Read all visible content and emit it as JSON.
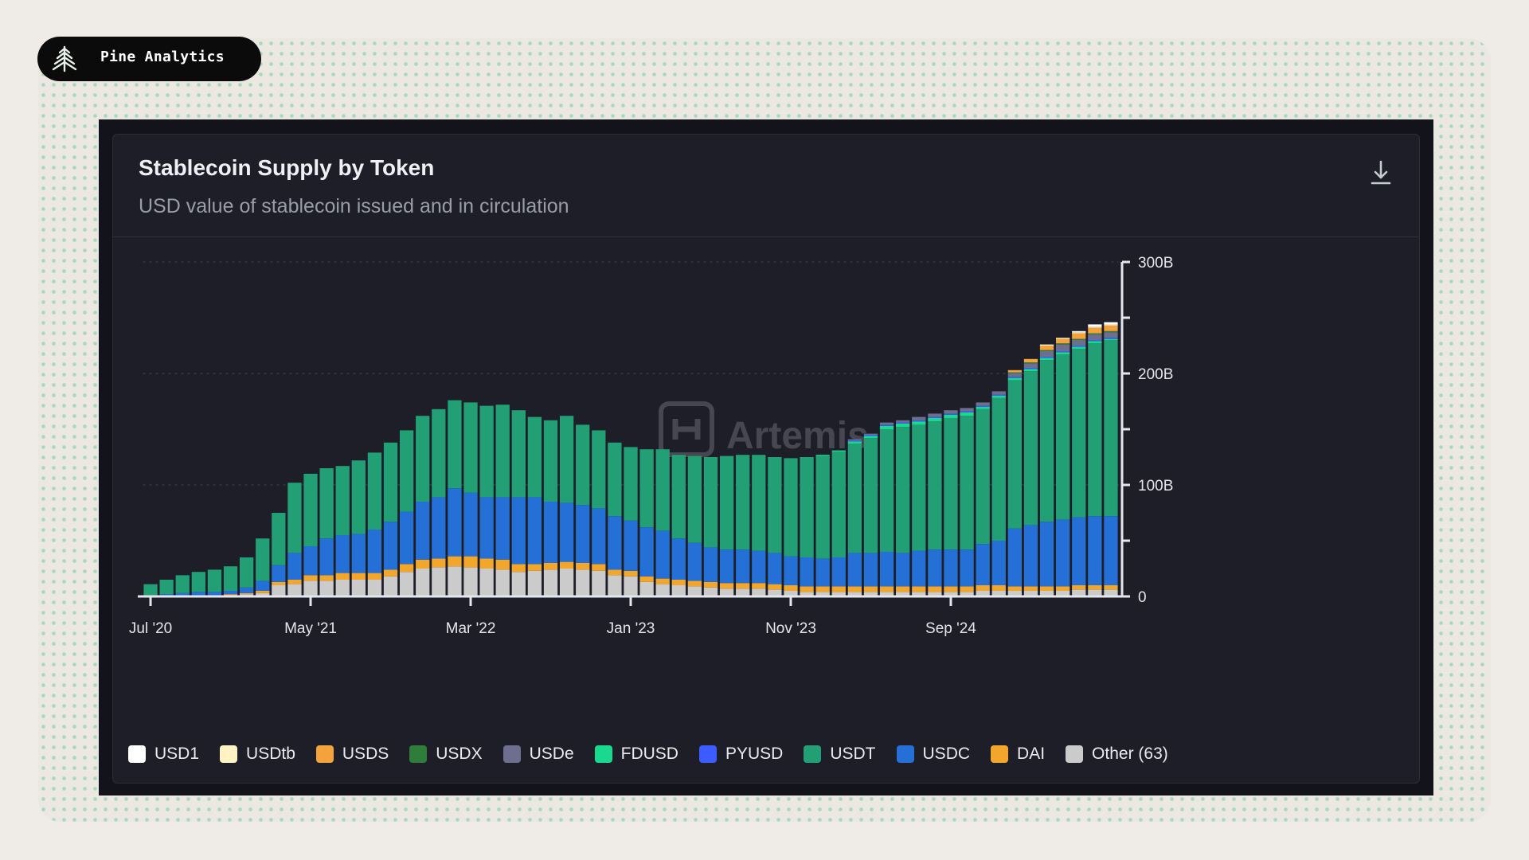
{
  "badge": {
    "name": "Pine Analytics"
  },
  "card": {
    "title": "Stablecoin Supply by Token",
    "subtitle": "USD value of stablecoin issued and in circulation",
    "download_icon": "download-icon",
    "watermark": "Artemis"
  },
  "colors": {
    "USD1": "#ffffff",
    "USDtb": "#fff3c4",
    "USDS": "#f4a23c",
    "USDX": "#2e7d3a",
    "USDe": "#6e6f8e",
    "FDUSD": "#19d98e",
    "PYUSD": "#3d5cff",
    "USDT": "#229f74",
    "USDC": "#2470d6",
    "DAI": "#f2a72c",
    "Other (63)": "#cbcbcb"
  },
  "legend": [
    "USD1",
    "USDtb",
    "USDS",
    "USDX",
    "USDe",
    "FDUSD",
    "PYUSD",
    "USDT",
    "USDC",
    "DAI",
    "Other (63)"
  ],
  "chart_data": {
    "type": "bar",
    "stacked": true,
    "title": "Stablecoin Supply by Token",
    "subtitle": "USD value of stablecoin issued and in circulation",
    "ylim": [
      0,
      300
    ],
    "y_ticks": [
      "0",
      "100B",
      "200B",
      "300B"
    ],
    "y_tick_values": [
      0,
      100,
      200,
      300
    ],
    "x_tick_labels": [
      "Jul '20",
      "May '21",
      "Mar '22",
      "Jan '23",
      "Nov '23",
      "Sep '24"
    ],
    "x_tick_index": [
      0,
      10,
      20,
      30,
      40,
      50
    ],
    "grid": "horizontal-dashed",
    "legend_position": "bottom",
    "categories": [
      "Jul '20",
      "Aug '20",
      "Sep '20",
      "Oct '20",
      "Nov '20",
      "Dec '20",
      "Jan '21",
      "Feb '21",
      "Mar '21",
      "Apr '21",
      "May '21",
      "Jun '21",
      "Jul '21",
      "Aug '21",
      "Sep '21",
      "Oct '21",
      "Nov '21",
      "Dec '21",
      "Jan '22",
      "Feb '22",
      "Mar '22",
      "Apr '22",
      "May '22",
      "Jun '22",
      "Jul '22",
      "Aug '22",
      "Sep '22",
      "Oct '22",
      "Nov '22",
      "Dec '22",
      "Jan '23",
      "Feb '23",
      "Mar '23",
      "Apr '23",
      "May '23",
      "Jun '23",
      "Jul '23",
      "Aug '23",
      "Sep '23",
      "Oct '23",
      "Nov '23",
      "Dec '23",
      "Jan '24",
      "Feb '24",
      "Mar '24",
      "Apr '24",
      "May '24",
      "Jun '24",
      "Jul '24",
      "Aug '24",
      "Sep '24",
      "Oct '24",
      "Nov '24",
      "Dec '24",
      "Jan '25",
      "Feb '25",
      "Mar '25",
      "Apr '25",
      "May '25",
      "Jun '25",
      "Jul '25"
    ],
    "series": [
      {
        "name": "Other (63)",
        "values": [
          1,
          1,
          1,
          1,
          1,
          1,
          2,
          3,
          10,
          11,
          14,
          14,
          15,
          15,
          15,
          18,
          22,
          25,
          26,
          27,
          26,
          25,
          24,
          22,
          23,
          24,
          25,
          24,
          23,
          19,
          18,
          13,
          11,
          10,
          9,
          8,
          7,
          7,
          7,
          6,
          5,
          4,
          4,
          4,
          4,
          4,
          4,
          4,
          4,
          4,
          4,
          4,
          5,
          5,
          5,
          5,
          5,
          5,
          6,
          6,
          6
        ]
      },
      {
        "name": "DAI",
        "values": [
          0,
          0,
          0,
          0,
          0,
          1,
          1,
          2,
          3,
          4,
          5,
          5,
          6,
          6,
          6,
          6,
          7,
          8,
          8,
          9,
          10,
          9,
          9,
          7,
          6,
          6,
          6,
          6,
          6,
          5,
          5,
          5,
          5,
          5,
          5,
          5,
          5,
          5,
          5,
          5,
          5,
          5,
          5,
          5,
          5,
          5,
          5,
          5,
          5,
          5,
          5,
          5,
          5,
          5,
          4,
          4,
          4,
          4,
          4,
          4,
          4
        ]
      },
      {
        "name": "USDC",
        "values": [
          0,
          1,
          2,
          3,
          3,
          3,
          5,
          9,
          15,
          24,
          26,
          33,
          34,
          35,
          39,
          43,
          47,
          52,
          55,
          61,
          57,
          55,
          56,
          60,
          60,
          55,
          53,
          52,
          50,
          48,
          45,
          44,
          43,
          37,
          34,
          31,
          30,
          30,
          29,
          28,
          26,
          26,
          25,
          26,
          30,
          30,
          31,
          30,
          32,
          33,
          33,
          33,
          37,
          40,
          52,
          55,
          58,
          60,
          61,
          62,
          62
        ]
      },
      {
        "name": "USDT",
        "values": [
          10,
          13,
          16,
          18,
          20,
          22,
          27,
          38,
          47,
          63,
          65,
          63,
          62,
          66,
          69,
          71,
          73,
          77,
          79,
          79,
          81,
          82,
          83,
          78,
          72,
          73,
          78,
          72,
          70,
          66,
          66,
          70,
          73,
          75,
          78,
          81,
          84,
          85,
          86,
          86,
          88,
          90,
          92,
          95,
          98,
          103,
          110,
          113,
          113,
          115,
          118,
          120,
          121,
          128,
          133,
          138,
          145,
          148,
          151,
          155,
          158
        ]
      },
      {
        "name": "FDUSD",
        "values": [
          0,
          0,
          0,
          0,
          0,
          0,
          0,
          0,
          0,
          0,
          0,
          0,
          0,
          0,
          0,
          0,
          0,
          0,
          0,
          0,
          0,
          0,
          0,
          0,
          0,
          0,
          0,
          0,
          0,
          0,
          0,
          0,
          0,
          0,
          0,
          0,
          0,
          0,
          0,
          0,
          0,
          0,
          1,
          1,
          2,
          2,
          3,
          3,
          3,
          3,
          3,
          3,
          2,
          2,
          2,
          2,
          2,
          2,
          2,
          2,
          1
        ]
      },
      {
        "name": "PYUSD",
        "values": [
          0,
          0,
          0,
          0,
          0,
          0,
          0,
          0,
          0,
          0,
          0,
          0,
          0,
          0,
          0,
          0,
          0,
          0,
          0,
          0,
          0,
          0,
          0,
          0,
          0,
          0,
          0,
          0,
          0,
          0,
          0,
          0,
          0,
          0,
          0,
          0,
          0,
          0,
          0,
          0,
          0,
          0,
          0,
          0,
          1,
          1,
          1,
          1,
          1,
          1,
          1,
          1,
          1,
          1,
          1,
          1,
          1,
          1,
          1,
          1,
          1
        ]
      },
      {
        "name": "USDe",
        "values": [
          0,
          0,
          0,
          0,
          0,
          0,
          0,
          0,
          0,
          0,
          0,
          0,
          0,
          0,
          0,
          0,
          0,
          0,
          0,
          0,
          0,
          0,
          0,
          0,
          0,
          0,
          0,
          0,
          0,
          0,
          0,
          0,
          0,
          0,
          0,
          0,
          0,
          0,
          0,
          0,
          0,
          0,
          0,
          0,
          1,
          1,
          2,
          2,
          3,
          3,
          3,
          3,
          3,
          3,
          3,
          4,
          5,
          6,
          5,
          5,
          5
        ]
      },
      {
        "name": "USDX",
        "values": [
          0,
          0,
          0,
          0,
          0,
          0,
          0,
          0,
          0,
          0,
          0,
          0,
          0,
          0,
          0,
          0,
          0,
          0,
          0,
          0,
          0,
          0,
          0,
          0,
          0,
          0,
          0,
          0,
          0,
          0,
          0,
          0,
          0,
          0,
          0,
          0,
          0,
          0,
          0,
          0,
          0,
          0,
          0,
          0,
          0,
          0,
          0,
          0,
          0,
          0,
          0,
          0,
          0,
          0,
          1,
          1,
          1,
          1,
          1,
          1,
          1
        ]
      },
      {
        "name": "USDS",
        "values": [
          0,
          0,
          0,
          0,
          0,
          0,
          0,
          0,
          0,
          0,
          0,
          0,
          0,
          0,
          0,
          0,
          0,
          0,
          0,
          0,
          0,
          0,
          0,
          0,
          0,
          0,
          0,
          0,
          0,
          0,
          0,
          0,
          0,
          0,
          0,
          0,
          0,
          0,
          0,
          0,
          0,
          0,
          0,
          0,
          0,
          0,
          0,
          0,
          0,
          0,
          0,
          0,
          0,
          0,
          2,
          3,
          4,
          4,
          5,
          5,
          5
        ]
      },
      {
        "name": "USDtb",
        "values": [
          0,
          0,
          0,
          0,
          0,
          0,
          0,
          0,
          0,
          0,
          0,
          0,
          0,
          0,
          0,
          0,
          0,
          0,
          0,
          0,
          0,
          0,
          0,
          0,
          0,
          0,
          0,
          0,
          0,
          0,
          0,
          0,
          0,
          0,
          0,
          0,
          0,
          0,
          0,
          0,
          0,
          0,
          0,
          0,
          0,
          0,
          0,
          0,
          0,
          0,
          0,
          0,
          0,
          0,
          0,
          0,
          1,
          1,
          1,
          1,
          1
        ]
      },
      {
        "name": "USD1",
        "values": [
          0,
          0,
          0,
          0,
          0,
          0,
          0,
          0,
          0,
          0,
          0,
          0,
          0,
          0,
          0,
          0,
          0,
          0,
          0,
          0,
          0,
          0,
          0,
          0,
          0,
          0,
          0,
          0,
          0,
          0,
          0,
          0,
          0,
          0,
          0,
          0,
          0,
          0,
          0,
          0,
          0,
          0,
          0,
          0,
          0,
          0,
          0,
          0,
          0,
          0,
          0,
          0,
          0,
          0,
          0,
          0,
          0,
          0,
          1,
          2,
          2
        ]
      }
    ]
  }
}
